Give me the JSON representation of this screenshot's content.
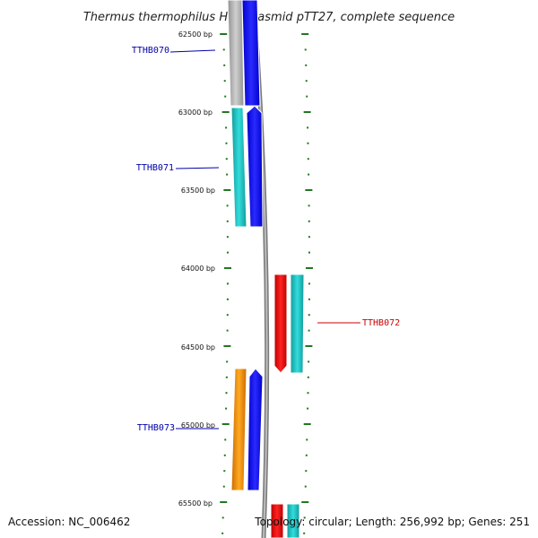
{
  "title": "Thermus thermophilus HB8 plasmid pTT27, complete sequence",
  "footer": {
    "accession": "Accession: NC_006462",
    "summary": "Topology: circular; Length: 256,992 bp; Genes: 251"
  },
  "ticks": [
    "62500 bp",
    "63000 bp",
    "63500 bp",
    "64000 bp",
    "64500 bp",
    "65000 bp",
    "65500 bp"
  ],
  "genes": [
    {
      "id": "TTHB070",
      "color": "#0000aa"
    },
    {
      "id": "TTHB071",
      "color": "#0000aa"
    },
    {
      "id": "TTHB072",
      "color": "#cc0000"
    },
    {
      "id": "TTHB073",
      "color": "#0000aa"
    }
  ],
  "colors": {
    "backbone": "#888888",
    "tick": "#227722",
    "cds": "#0000ee",
    "gene_gray": "#b0b0b0",
    "gene_cyan": "#22c4c4",
    "gene_red": "#ee0000",
    "gene_orange": "#ff9900"
  }
}
